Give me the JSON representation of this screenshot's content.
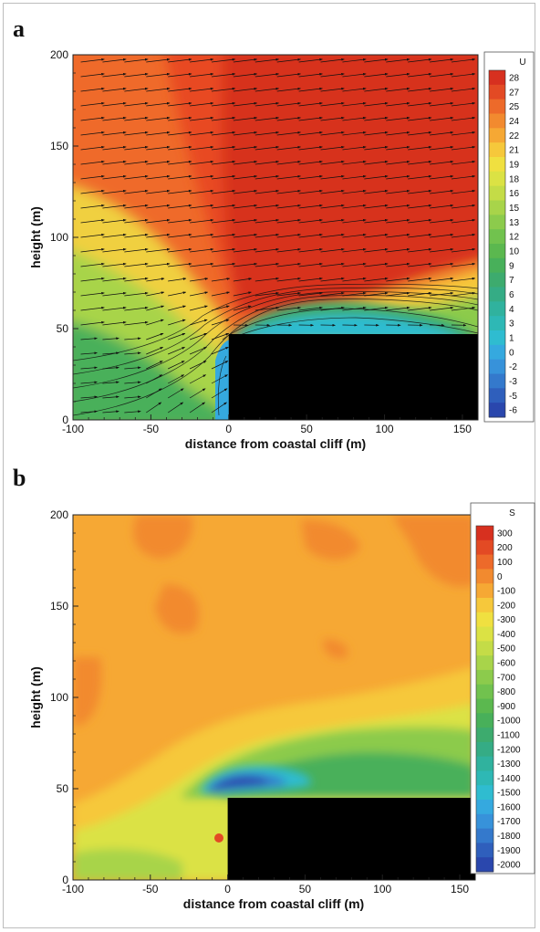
{
  "chart_data": [
    {
      "panel": "a",
      "type": "heatmap",
      "xlabel": "distance from coastal cliff (m)",
      "ylabel": "height (m)",
      "xlim": [
        -100,
        160
      ],
      "ylim": [
        0,
        200
      ],
      "xticks": [
        -100,
        -50,
        0,
        50,
        100,
        150
      ],
      "yticks": [
        0,
        50,
        100,
        150,
        200
      ],
      "cliff": {
        "x_start": 0,
        "x_end": 160,
        "height": 47
      },
      "vectors": true,
      "colorbar": {
        "title": "U",
        "levels": [
          28,
          27,
          25,
          24,
          22,
          21,
          19,
          18,
          16,
          15,
          13,
          12,
          10,
          9,
          7,
          6,
          4,
          3,
          1,
          0,
          -2,
          -3,
          -5,
          -6
        ],
        "colors": [
          "#d7301f",
          "#e34a24",
          "#ed6a2a",
          "#f28a2f",
          "#f6a834",
          "#f6c83b",
          "#f0e040",
          "#dbe244",
          "#c4dc47",
          "#a8d44a",
          "#8ccb4c",
          "#71c24e",
          "#5bb84f",
          "#48b05a",
          "#3dab6e",
          "#35ac85",
          "#30b29e",
          "#2eb8b5",
          "#2fbcd0",
          "#35a9df",
          "#3792da",
          "#3479cc",
          "#2f5fbc",
          "#2a47ad"
        ]
      }
    },
    {
      "panel": "b",
      "type": "heatmap",
      "xlabel": "distance from coastal cliff (m)",
      "ylabel": "height (m)",
      "xlim": [
        -100,
        160
      ],
      "ylim": [
        0,
        200
      ],
      "xticks": [
        -100,
        -50,
        0,
        50,
        100,
        150
      ],
      "yticks": [
        0,
        50,
        100,
        150,
        200
      ],
      "cliff": {
        "x_start": 0,
        "x_end": 160,
        "height": 45
      },
      "vectors": false,
      "colorbar": {
        "title": "S",
        "levels": [
          300,
          200,
          100,
          0,
          -100,
          -200,
          -300,
          -400,
          -500,
          -600,
          -700,
          -800,
          -900,
          -1000,
          -1100,
          -1200,
          -1300,
          -1400,
          -1500,
          -1600,
          -1700,
          -1800,
          -1900,
          -2000
        ],
        "colors": [
          "#d7301f",
          "#e34a24",
          "#ed6a2a",
          "#f28a2f",
          "#f6a834",
          "#f6c83b",
          "#f0e040",
          "#dbe244",
          "#c4dc47",
          "#a8d44a",
          "#8ccb4c",
          "#71c24e",
          "#5bb84f",
          "#48b05a",
          "#3dab6e",
          "#35ac85",
          "#30b29e",
          "#2eb8b5",
          "#2fbcd0",
          "#35a9df",
          "#3792da",
          "#3479cc",
          "#2f5fbc",
          "#2a47ad"
        ]
      }
    }
  ]
}
